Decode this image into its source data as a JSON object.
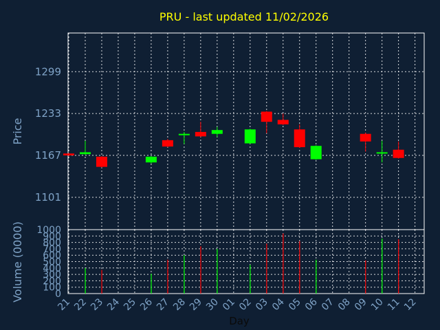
{
  "title": "PRU - last updated 11/02/2026",
  "colors": {
    "background": "#0f1f33",
    "text": "#7fa3c7",
    "title": "#ffff00",
    "up": "#00ff00",
    "down": "#ff0000",
    "grid": "#ffffff"
  },
  "chart_data": [
    {
      "type": "candlestick",
      "ylabel": "Price",
      "ylim": [
        1050,
        1360
      ],
      "yticks": [
        1101,
        1167,
        1233,
        1299
      ],
      "yticks_text": [
        "1101",
        "1167",
        "1233",
        "1299"
      ],
      "grid": true,
      "candles": [
        {
          "day": "21",
          "open": 1170,
          "close": 1167,
          "high": 1171,
          "low": 1166
        },
        {
          "day": "22",
          "open": 1169,
          "close": 1172,
          "high": 1190,
          "low": 1168
        },
        {
          "day": "23",
          "open": 1165,
          "close": 1149,
          "high": 1166,
          "low": 1148
        },
        {
          "day": "26",
          "open": 1156,
          "close": 1165,
          "high": 1166,
          "low": 1154
        },
        {
          "day": "27",
          "open": 1191,
          "close": 1181,
          "high": 1193,
          "low": 1180
        },
        {
          "day": "28",
          "open": 1199,
          "close": 1201,
          "high": 1204,
          "low": 1185
        },
        {
          "day": "29",
          "open": 1204,
          "close": 1197,
          "high": 1220,
          "low": 1196
        },
        {
          "day": "30",
          "open": 1201,
          "close": 1207,
          "high": 1212,
          "low": 1196
        },
        {
          "day": "02",
          "open": 1186,
          "close": 1208,
          "high": 1209,
          "low": 1185
        },
        {
          "day": "03",
          "open": 1236,
          "close": 1220,
          "high": 1237,
          "low": 1202
        },
        {
          "day": "04",
          "open": 1223,
          "close": 1216,
          "high": 1233,
          "low": 1215
        },
        {
          "day": "05",
          "open": 1208,
          "close": 1180,
          "high": 1216,
          "low": 1179
        },
        {
          "day": "06",
          "open": 1161,
          "close": 1182,
          "high": 1183,
          "low": 1160
        },
        {
          "day": "09",
          "open": 1201,
          "close": 1189,
          "high": 1203,
          "low": 1173
        },
        {
          "day": "10",
          "open": 1170,
          "close": 1172,
          "high": 1190,
          "low": 1156
        },
        {
          "day": "11",
          "open": 1176,
          "close": 1163,
          "high": 1189,
          "low": 1162
        }
      ]
    },
    {
      "type": "bar",
      "ylabel": "Volume (0000)",
      "ylim": [
        0,
        1000
      ],
      "yticks_text": [
        "0",
        "100",
        "200",
        "300",
        "400",
        "500",
        "600",
        "700",
        "800",
        "900",
        "1000"
      ],
      "xlabel": "Day",
      "x_ticks": [
        "21",
        "22",
        "23",
        "24",
        "25",
        "26",
        "27",
        "28",
        "29",
        "30",
        "01",
        "02",
        "03",
        "04",
        "05",
        "06",
        "07",
        "08",
        "09",
        "10",
        "11",
        "12"
      ],
      "grid": true,
      "volumes": [
        {
          "day": "21",
          "value": 0,
          "direction": "down"
        },
        {
          "day": "22",
          "value": 400,
          "direction": "up"
        },
        {
          "day": "23",
          "value": 370,
          "direction": "down"
        },
        {
          "day": "26",
          "value": 310,
          "direction": "up"
        },
        {
          "day": "27",
          "value": 530,
          "direction": "down"
        },
        {
          "day": "28",
          "value": 600,
          "direction": "up"
        },
        {
          "day": "29",
          "value": 740,
          "direction": "down"
        },
        {
          "day": "30",
          "value": 700,
          "direction": "up"
        },
        {
          "day": "02",
          "value": 450,
          "direction": "up"
        },
        {
          "day": "03",
          "value": 780,
          "direction": "down"
        },
        {
          "day": "04",
          "value": 940,
          "direction": "down"
        },
        {
          "day": "05",
          "value": 820,
          "direction": "down"
        },
        {
          "day": "06",
          "value": 530,
          "direction": "up"
        },
        {
          "day": "09",
          "value": 520,
          "direction": "down"
        },
        {
          "day": "10",
          "value": 860,
          "direction": "up"
        },
        {
          "day": "11",
          "value": 850,
          "direction": "down"
        }
      ]
    }
  ]
}
